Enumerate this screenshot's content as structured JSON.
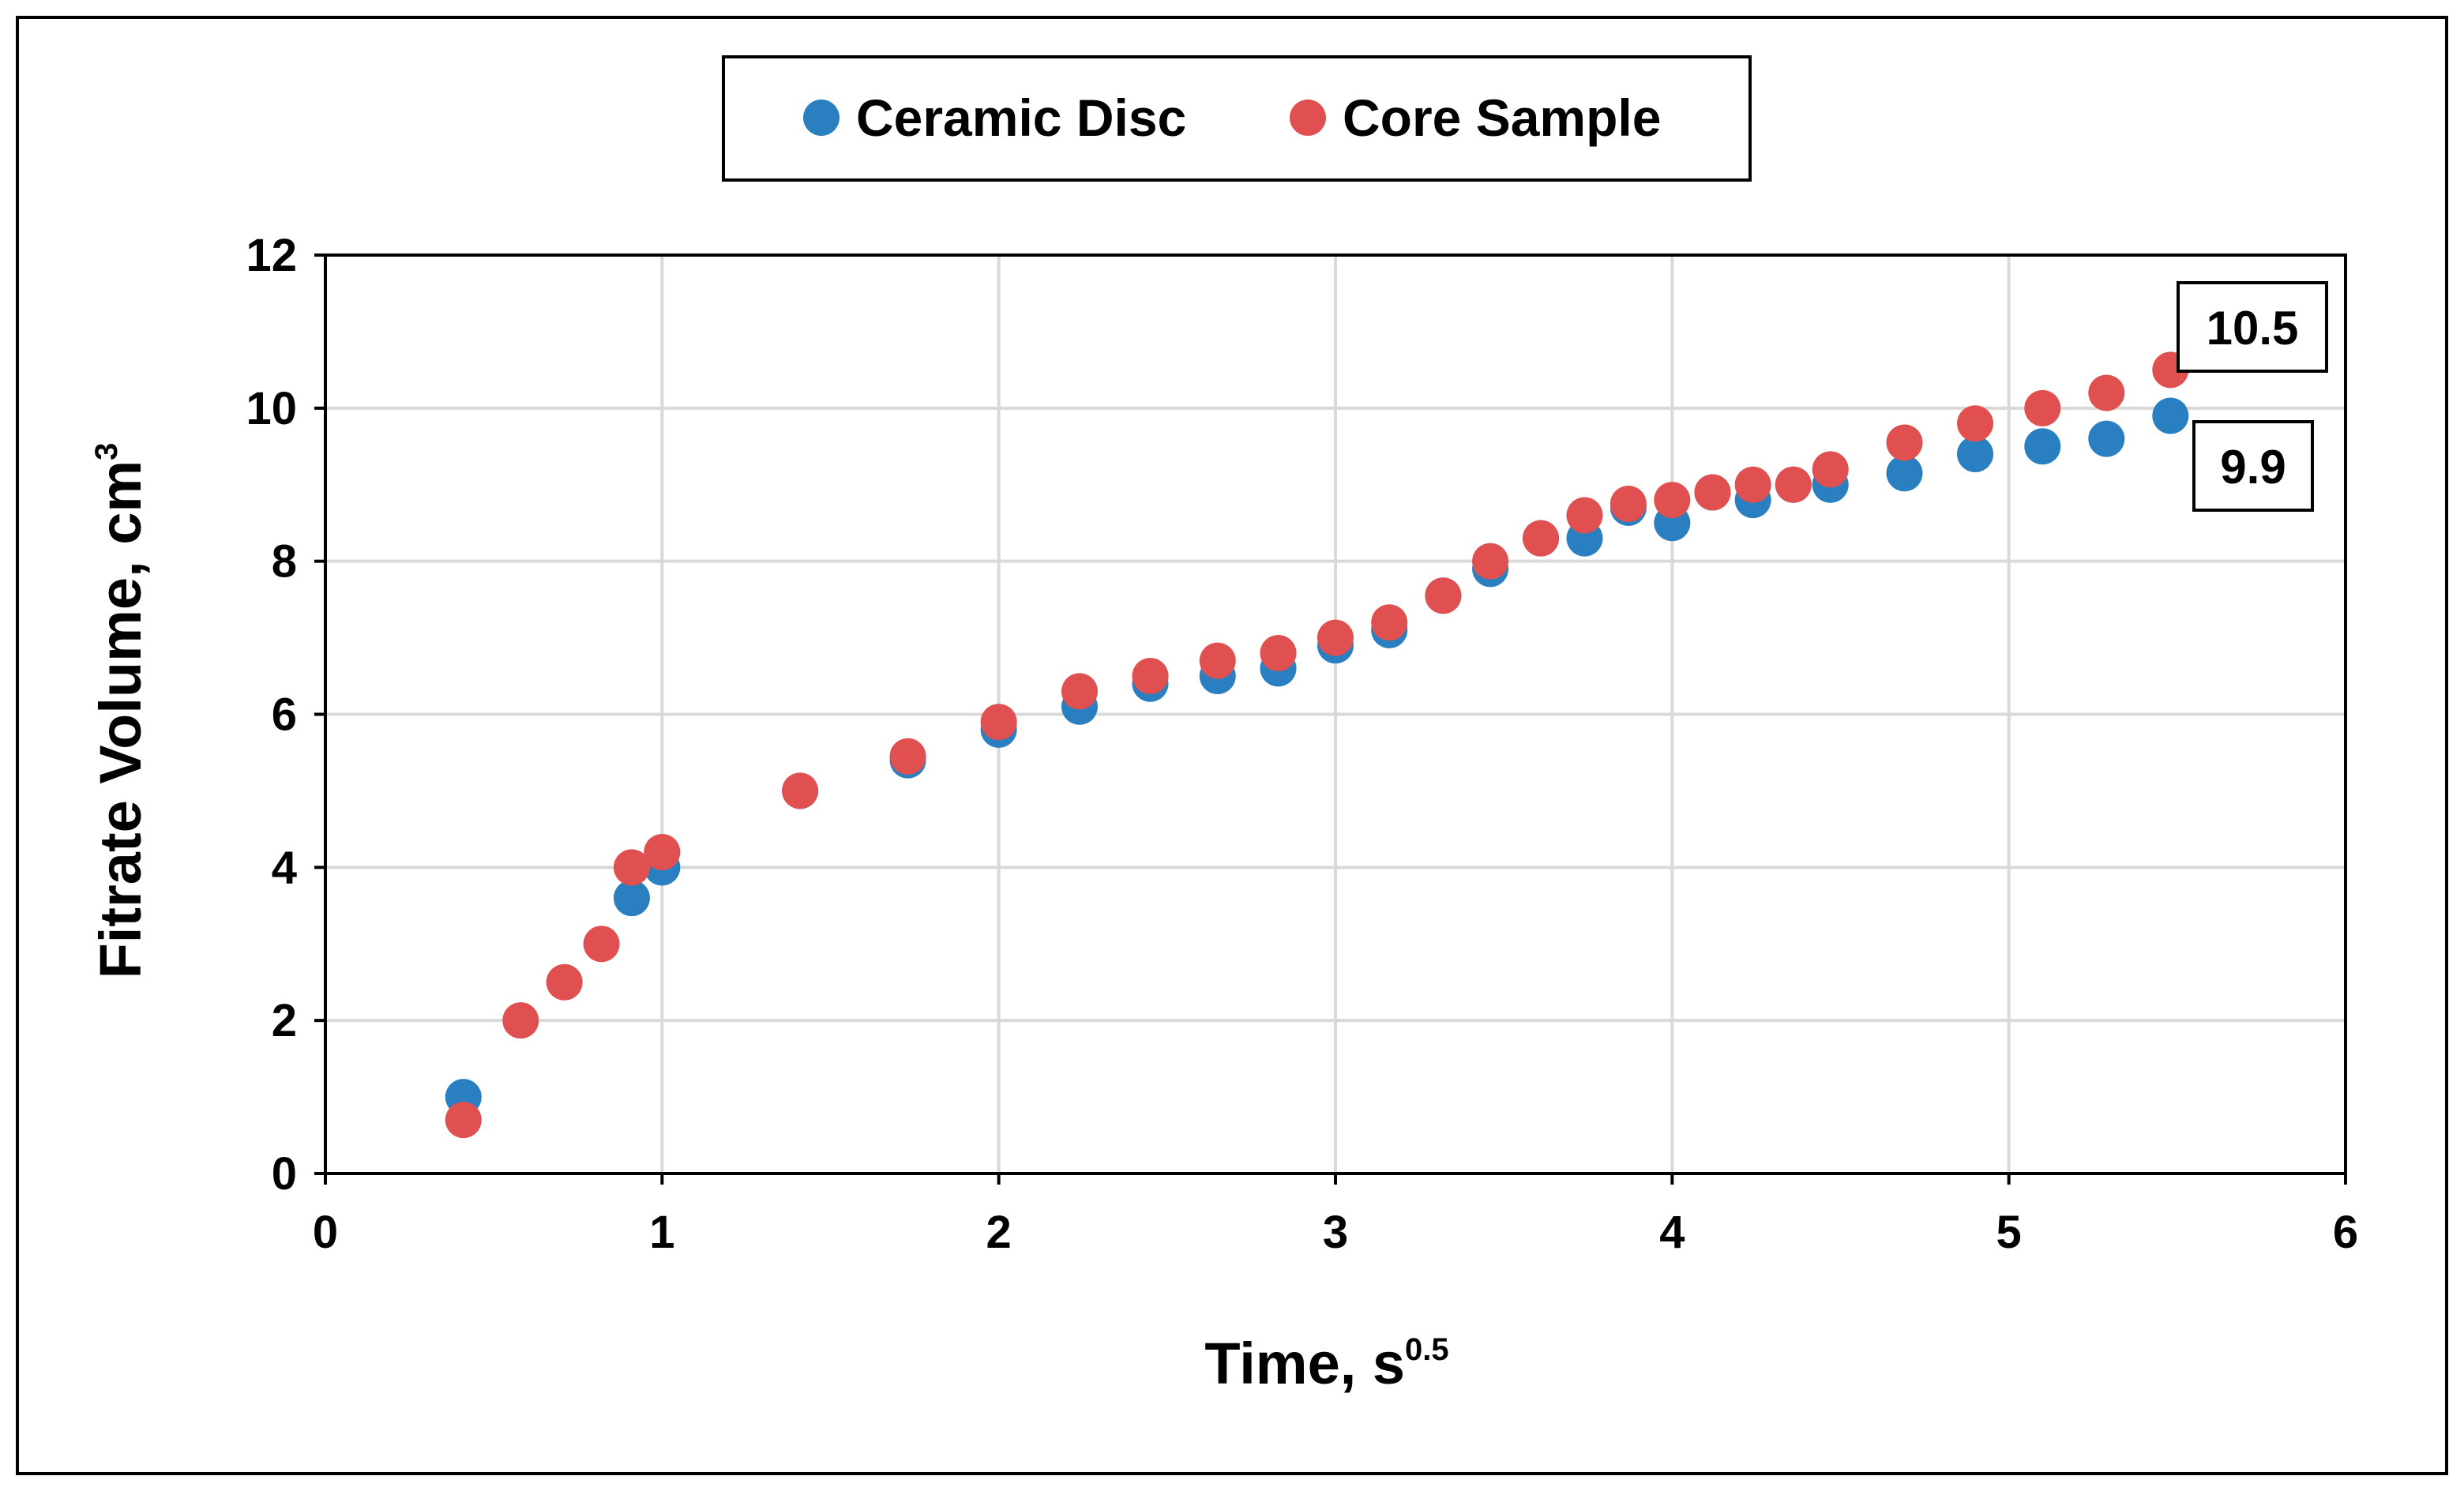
{
  "colors": {
    "ceramic": "#2a7fc1",
    "core": "#e05050",
    "grid": "#d9d9d9",
    "axis": "#000000"
  },
  "chart_data": {
    "type": "scatter",
    "title": "",
    "xlabel": "Time, s",
    "xlabel_sup": "0.5",
    "ylabel": "Fitrate Volume, cm",
    "ylabel_sup": "3",
    "xlim": [
      0,
      6
    ],
    "ylim": [
      0,
      12
    ],
    "xticks": [
      0,
      1,
      2,
      3,
      4,
      5,
      6
    ],
    "yticks": [
      0,
      2,
      4,
      6,
      8,
      10,
      12
    ],
    "grid": true,
    "legend_position": "top",
    "series": [
      {
        "name": "Ceramic Disc",
        "color": "#2a7fc1",
        "points": [
          [
            0.41,
            1.0
          ],
          [
            0.91,
            3.6
          ],
          [
            1.0,
            4.0
          ],
          [
            1.41,
            5.0
          ],
          [
            1.73,
            5.4
          ],
          [
            2.0,
            5.8
          ],
          [
            2.24,
            6.1
          ],
          [
            2.45,
            6.4
          ],
          [
            2.65,
            6.5
          ],
          [
            2.83,
            6.6
          ],
          [
            3.0,
            6.9
          ],
          [
            3.16,
            7.1
          ],
          [
            3.32,
            7.55
          ],
          [
            3.46,
            7.9
          ],
          [
            3.61,
            8.3
          ],
          [
            3.74,
            8.3
          ],
          [
            3.87,
            8.7
          ],
          [
            4.0,
            8.5
          ],
          [
            4.12,
            8.9
          ],
          [
            4.24,
            8.8
          ],
          [
            4.36,
            9.0
          ],
          [
            4.47,
            9.0
          ],
          [
            4.69,
            9.15
          ],
          [
            4.9,
            9.4
          ],
          [
            5.1,
            9.5
          ],
          [
            5.29,
            9.6
          ],
          [
            5.48,
            9.9
          ]
        ]
      },
      {
        "name": "Core Sample",
        "color": "#e05050",
        "points": [
          [
            0.41,
            0.7
          ],
          [
            0.58,
            2.0
          ],
          [
            0.71,
            2.5
          ],
          [
            0.82,
            3.0
          ],
          [
            0.91,
            4.0
          ],
          [
            1.0,
            4.2
          ],
          [
            1.41,
            5.0
          ],
          [
            1.73,
            5.45
          ],
          [
            2.0,
            5.9
          ],
          [
            2.24,
            6.3
          ],
          [
            2.45,
            6.5
          ],
          [
            2.65,
            6.7
          ],
          [
            2.83,
            6.8
          ],
          [
            3.0,
            7.0
          ],
          [
            3.16,
            7.2
          ],
          [
            3.32,
            7.55
          ],
          [
            3.46,
            8.0
          ],
          [
            3.61,
            8.3
          ],
          [
            3.74,
            8.6
          ],
          [
            3.87,
            8.75
          ],
          [
            4.0,
            8.8
          ],
          [
            4.12,
            8.9
          ],
          [
            4.24,
            9.0
          ],
          [
            4.36,
            9.0
          ],
          [
            4.47,
            9.2
          ],
          [
            4.69,
            9.55
          ],
          [
            4.9,
            9.8
          ],
          [
            5.1,
            10.0
          ],
          [
            5.29,
            10.2
          ],
          [
            5.48,
            10.5
          ]
        ]
      }
    ],
    "annotations": [
      {
        "text": "10.5",
        "series": "Core Sample",
        "x": 5.48,
        "y": 10.5
      },
      {
        "text": "9.9",
        "series": "Ceramic Disc",
        "x": 5.48,
        "y": 9.9
      }
    ]
  }
}
